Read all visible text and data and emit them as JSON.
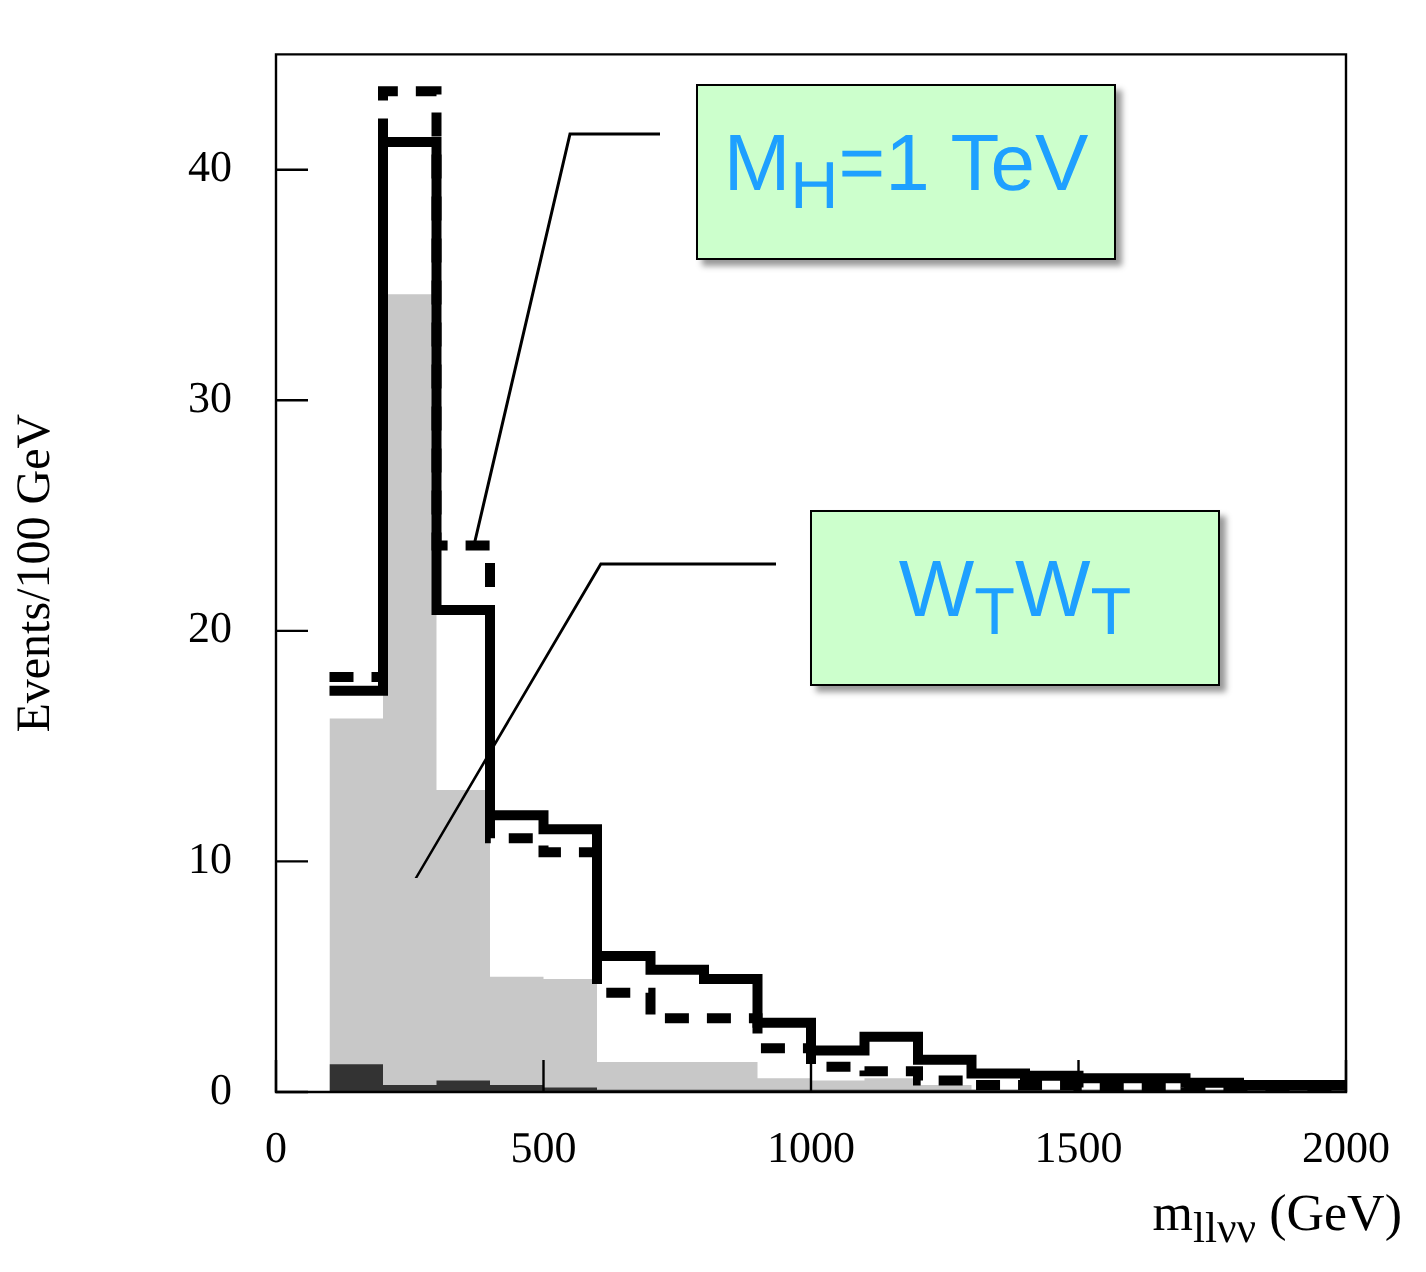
{
  "chart_data": {
    "type": "histogram",
    "xlabel": "m$_{llνν}$ (GeV)",
    "ylabel": "Events/100 GeV",
    "bins": [
      100,
      200,
      300,
      400,
      500,
      600,
      700,
      800,
      900,
      1000,
      1100,
      1200,
      1300,
      1400,
      1500,
      1600,
      1700,
      1800,
      1900,
      2000
    ],
    "series": [
      {
        "color": "#000000",
        "line_style": "dashed",
        "values": [
          18.0,
          43.4,
          23.7,
          11.0,
          10.4,
          4.3,
          3.2,
          3.2,
          1.9,
          1.1,
          0.9,
          0.5,
          0.3,
          0.3,
          0.2,
          0.2,
          0.1,
          0.1,
          0.1
        ]
      },
      {
        "color": "#000000",
        "line_style": "solid",
        "values": [
          17.4,
          41.2,
          20.9,
          12.0,
          11.4,
          5.9,
          5.3,
          4.9,
          3.0,
          1.8,
          2.4,
          1.4,
          0.8,
          0.7,
          0.6,
          0.6,
          0.4,
          0.3,
          0.3
        ]
      },
      {
        "color": "#333333",
        "values": [
          1.2,
          0.3,
          0.5,
          0.3,
          0.2,
          0.1,
          0.1,
          0.1,
          0.1,
          0.1,
          0.1,
          0.1,
          0.1,
          0.1,
          0.1,
          0.1,
          0.1,
          0.1,
          0.1
        ]
      },
      {
        "color": "#c8c8c8",
        "values": [
          16.2,
          34.6,
          13.1,
          5.0,
          4.9,
          1.3,
          1.3,
          1.3,
          0.6,
          0.5,
          0.6,
          0.3,
          0.1,
          0.1,
          0.1,
          0.1,
          0.1,
          0.1,
          0.1
        ]
      }
    ],
    "xlim": [
      0,
      2000
    ],
    "xticks": [
      0,
      500,
      1000,
      1500,
      2000
    ],
    "ylim": [
      0,
      45
    ],
    "yticks": [
      0,
      10,
      20,
      30,
      40
    ],
    "annotations": [
      {
        "text": "M$_{H}$=1 TeV",
        "x": 370,
        "y": 23.7
      },
      "W$_{T}$W$_{T}$"
    ]
  }
}
